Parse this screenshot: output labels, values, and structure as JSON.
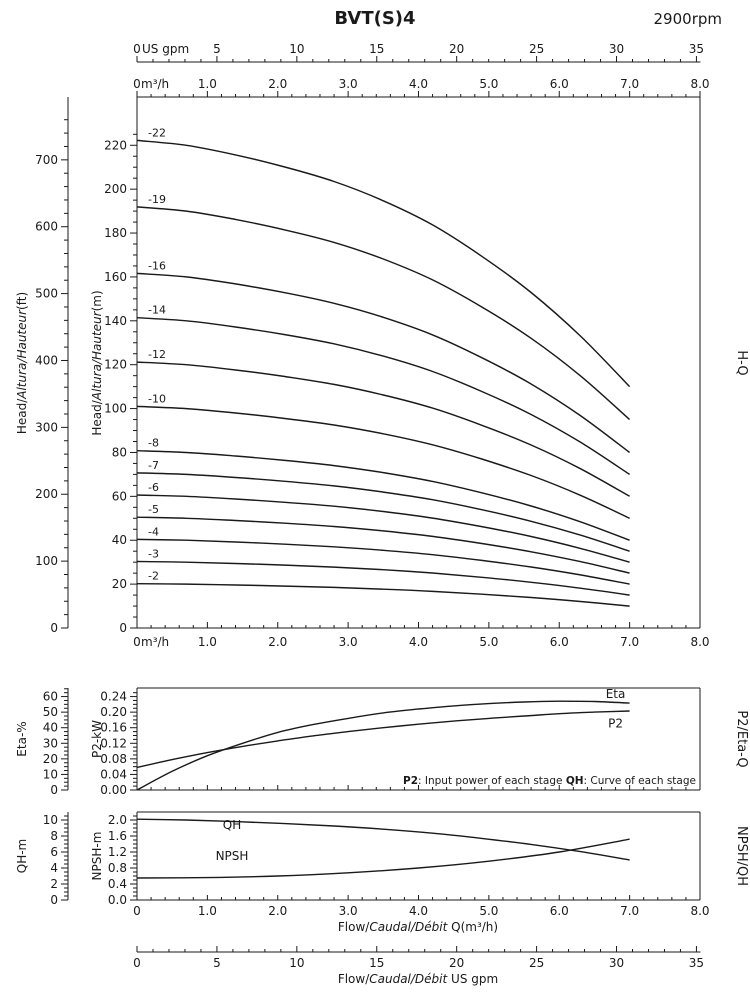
{
  "header": {
    "title": "BVT(S)4",
    "rpm": "2900rpm"
  },
  "colors": {
    "ink": "#1a1a1a",
    "background": "#ffffff"
  },
  "top_gpm_axis": {
    "unit": "US gpm",
    "ticks": [
      0,
      5,
      10,
      15,
      20,
      25,
      30,
      35
    ]
  },
  "bottom_gpm_axis": {
    "ticks": [
      0,
      5,
      10,
      15,
      20,
      25,
      30,
      35
    ],
    "caption_parts": [
      {
        "t": "Flow/"
      },
      {
        "t": "Caudal/Débit",
        "i": true
      },
      {
        "t": "  US gpm"
      }
    ]
  },
  "chart_data": [
    {
      "id": "hq",
      "type": "line",
      "right_label": "H-Q",
      "xlim": [
        0,
        8
      ],
      "x_unit": "m³/h",
      "x_ticks": [
        "0",
        "1.0",
        "2.0",
        "3.0",
        "4.0",
        "5.0",
        "6.0",
        "7.0",
        "8.0"
      ],
      "y_axis_ft": {
        "title_parts": [
          {
            "t": "Head/"
          },
          {
            "t": "Altura/Hauteur",
            "i": true
          },
          {
            "t": "(ft)"
          }
        ],
        "ticks": [
          0,
          100,
          200,
          300,
          400,
          500,
          600,
          700
        ]
      },
      "y_axis_m": {
        "title_parts": [
          {
            "t": "Head/"
          },
          {
            "t": "Altura/Hauteur",
            "i": true
          },
          {
            "t": "(m)"
          }
        ],
        "ticks": [
          0,
          20,
          40,
          60,
          80,
          100,
          120,
          140,
          160,
          180,
          200,
          220
        ]
      },
      "x_m3h": [
        0,
        0.7,
        1.4,
        2.1,
        2.8,
        3.5,
        4.2,
        4.9,
        5.6,
        6.3,
        7.0
      ],
      "head_per_stage_m": [
        10.1,
        10.0,
        9.8,
        9.55,
        9.25,
        8.85,
        8.35,
        7.7,
        6.95,
        6.05,
        5.0
      ],
      "stage_curves": [
        {
          "stages": 22,
          "label": "-22"
        },
        {
          "stages": 19,
          "label": "-19"
        },
        {
          "stages": 16,
          "label": "-16"
        },
        {
          "stages": 14,
          "label": "-14"
        },
        {
          "stages": 12,
          "label": "-12"
        },
        {
          "stages": 10,
          "label": "-10"
        },
        {
          "stages": 8,
          "label": "-8"
        },
        {
          "stages": 7,
          "label": "-7"
        },
        {
          "stages": 6,
          "label": "-6"
        },
        {
          "stages": 5,
          "label": "-5"
        },
        {
          "stages": 4,
          "label": "-4"
        },
        {
          "stages": 3,
          "label": "-3"
        },
        {
          "stages": 2,
          "label": "-2"
        }
      ]
    },
    {
      "id": "p2eta",
      "type": "line",
      "right_label": "P2/Eta-Q",
      "eta_axis": {
        "title": "Eta-%",
        "ticks": [
          0,
          10,
          20,
          30,
          40,
          50,
          60
        ]
      },
      "p2_axis": {
        "title": "P2-kW",
        "ticks": [
          "0.00",
          "0.04",
          "0.08",
          "0.12",
          "0.16",
          "0.20",
          "0.24"
        ]
      },
      "series": [
        {
          "name": "Eta",
          "axis": "eta",
          "x": [
            0,
            0.5,
            1,
            1.5,
            2,
            2.5,
            3,
            3.5,
            4,
            4.5,
            5,
            5.5,
            6,
            6.5,
            7
          ],
          "y": [
            0,
            12,
            22,
            30,
            37,
            42,
            46,
            49.5,
            52,
            54,
            55.5,
            56.5,
            57,
            56.8,
            55.8
          ]
        },
        {
          "name": "P2",
          "axis": "p2",
          "x": [
            0,
            0.5,
            1,
            1.5,
            2,
            2.5,
            3,
            3.5,
            4,
            4.5,
            5,
            5.5,
            6,
            6.5,
            7
          ],
          "y": [
            0.058,
            0.078,
            0.096,
            0.112,
            0.126,
            0.139,
            0.15,
            0.16,
            0.169,
            0.177,
            0.184,
            0.19,
            0.196,
            0.2,
            0.203
          ]
        }
      ],
      "curve_labels": [
        {
          "text": "Eta",
          "q": 6.8,
          "eta": 59
        },
        {
          "text": "P2",
          "q": 6.8,
          "p2": 0.16
        }
      ],
      "note_parts": [
        {
          "t": "P2",
          "b": true
        },
        {
          "t": ": Input power of each stage  "
        },
        {
          "t": "QH",
          "b": true
        },
        {
          "t": ": Curve of each stage"
        }
      ]
    },
    {
      "id": "npshqh",
      "type": "line",
      "right_label": "NPSH/QH",
      "qh_axis": {
        "title": "QH-m",
        "ticks": [
          0,
          2,
          4,
          6,
          8,
          10
        ]
      },
      "npsh_axis": {
        "title": "NPSH-m",
        "ticks": [
          "0.0",
          "0.4",
          "0.8",
          "1.2",
          "1.6",
          "2.0"
        ]
      },
      "x_ticks": [
        "0",
        "1.0",
        "2.0",
        "3.0",
        "4.0",
        "5.0",
        "6.0",
        "7.0",
        "8.0"
      ],
      "caption_parts": [
        {
          "t": "Flow/"
        },
        {
          "t": "Caudal/Débit",
          "i": true
        },
        {
          "t": " Q(m³/h)"
        }
      ],
      "series": [
        {
          "name": "QH",
          "axis": "qh",
          "x": [
            0,
            0.7,
            1.4,
            2.1,
            2.8,
            3.5,
            4.2,
            4.9,
            5.6,
            6.3,
            7.0
          ],
          "y": [
            10.1,
            10.0,
            9.8,
            9.55,
            9.25,
            8.85,
            8.35,
            7.7,
            6.95,
            6.05,
            5.0
          ]
        },
        {
          "name": "NPSH",
          "axis": "npsh",
          "x": [
            0,
            1,
            2,
            3,
            4,
            5,
            6,
            7
          ],
          "y": [
            0.55,
            0.56,
            0.6,
            0.68,
            0.8,
            0.97,
            1.2,
            1.52
          ]
        }
      ],
      "curve_labels": [
        {
          "text": "QH",
          "q": 1.35,
          "npsh": 1.78
        },
        {
          "text": "NPSH",
          "q": 1.35,
          "npsh": 1.0
        }
      ]
    }
  ]
}
